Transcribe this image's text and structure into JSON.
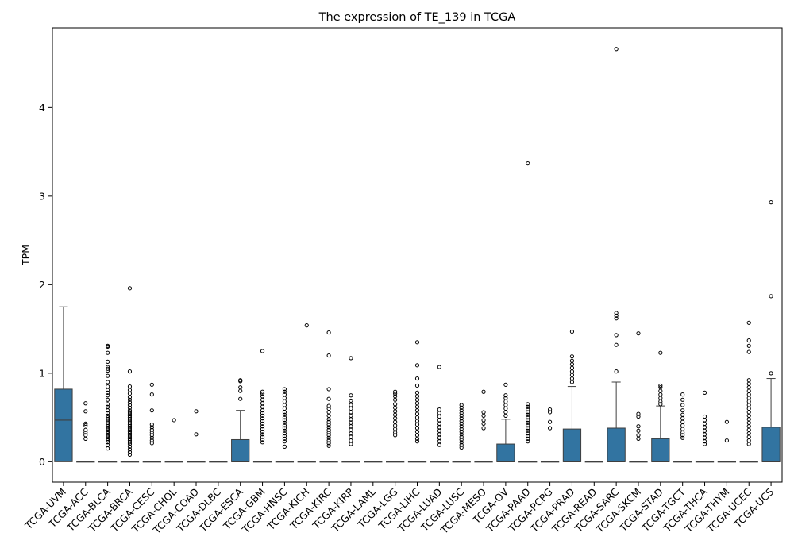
{
  "chart_data": {
    "type": "box",
    "title": "The expression of TE_139 in TCGA",
    "xlabel": "",
    "ylabel": "TPM",
    "ylim": [
      -0.23,
      4.9
    ],
    "yticks": [
      0,
      1,
      2,
      3,
      4
    ],
    "grid": false,
    "box_color": "#3274a1",
    "categories": [
      "TCGA-UVM",
      "TCGA-ACC",
      "TCGA-BLCA",
      "TCGA-BRCA",
      "TCGA-CESC",
      "TCGA-CHOL",
      "TCGA-COAD",
      "TCGA-DLBC",
      "TCGA-ESCA",
      "TCGA-GBM",
      "TCGA-HNSC",
      "TCGA-KICH",
      "TCGA-KIRC",
      "TCGA-KIRP",
      "TCGA-LAML",
      "TCGA-LGG",
      "TCGA-LIHC",
      "TCGA-LUAD",
      "TCGA-LUSC",
      "TCGA-MESO",
      "TCGA-OV",
      "TCGA-PAAD",
      "TCGA-PCPG",
      "TCGA-PRAD",
      "TCGA-READ",
      "TCGA-SARC",
      "TCGA-SKCM",
      "TCGA-STAD",
      "TCGA-TGCT",
      "TCGA-THCA",
      "TCGA-THYM",
      "TCGA-UCEC",
      "TCGA-UCS"
    ],
    "boxes": [
      {
        "q1": 0,
        "median": 0.47,
        "q3": 0.82,
        "whisker_low": 0,
        "whisker_high": 1.75,
        "outliers": []
      },
      {
        "q1": 0,
        "median": 0,
        "q3": 0,
        "whisker_low": 0,
        "whisker_high": 0,
        "outliers": [
          0.66,
          0.57,
          0.43,
          0.41,
          0.36,
          0.33,
          0.3,
          0.26
        ]
      },
      {
        "q1": 0,
        "median": 0,
        "q3": 0,
        "whisker_low": 0,
        "whisker_high": 0,
        "outliers": [
          1.31,
          1.3,
          1.23,
          1.13,
          1.07,
          1.05,
          1.03,
          0.97,
          0.9,
          0.85,
          0.81,
          0.78,
          0.75,
          0.7,
          0.65,
          0.62,
          0.58,
          0.55,
          0.52,
          0.5,
          0.48,
          0.46,
          0.44,
          0.42,
          0.4,
          0.38,
          0.36,
          0.34,
          0.32,
          0.3,
          0.28,
          0.26,
          0.24,
          0.22,
          0.19,
          0.15
        ]
      },
      {
        "q1": 0,
        "median": 0,
        "q3": 0,
        "whisker_low": 0,
        "whisker_high": 0,
        "outliers": [
          1.96,
          1.02,
          0.85,
          0.81,
          0.77,
          0.73,
          0.7,
          0.67,
          0.64,
          0.61,
          0.58,
          0.56,
          0.54,
          0.52,
          0.5,
          0.48,
          0.46,
          0.44,
          0.42,
          0.4,
          0.38,
          0.36,
          0.34,
          0.32,
          0.3,
          0.28,
          0.26,
          0.24,
          0.22,
          0.2,
          0.17,
          0.14,
          0.11,
          0.08
        ]
      },
      {
        "q1": 0,
        "median": 0,
        "q3": 0,
        "whisker_low": 0,
        "whisker_high": 0,
        "outliers": [
          0.87,
          0.76,
          0.58,
          0.42,
          0.39,
          0.36,
          0.33,
          0.3,
          0.27,
          0.24,
          0.21
        ]
      },
      {
        "q1": 0,
        "median": 0,
        "q3": 0,
        "whisker_low": 0,
        "whisker_high": 0,
        "outliers": [
          0.47
        ]
      },
      {
        "q1": 0,
        "median": 0,
        "q3": 0,
        "whisker_low": 0,
        "whisker_high": 0,
        "outliers": [
          0.57,
          0.31
        ]
      },
      {
        "q1": 0,
        "median": 0,
        "q3": 0,
        "whisker_low": 0,
        "whisker_high": 0,
        "outliers": []
      },
      {
        "q1": 0,
        "median": 0,
        "q3": 0.25,
        "whisker_low": 0,
        "whisker_high": 0.58,
        "outliers": [
          0.92,
          0.91,
          0.84,
          0.8,
          0.71
        ]
      },
      {
        "q1": 0,
        "median": 0,
        "q3": 0,
        "whisker_low": 0,
        "whisker_high": 0,
        "outliers": [
          1.25,
          0.79,
          0.77,
          0.74,
          0.7,
          0.66,
          0.62,
          0.58,
          0.55,
          0.52,
          0.49,
          0.46,
          0.43,
          0.4,
          0.37,
          0.34,
          0.31,
          0.28,
          0.25,
          0.22
        ]
      },
      {
        "q1": 0,
        "median": 0,
        "q3": 0,
        "whisker_low": 0,
        "whisker_high": 0,
        "outliers": [
          0.82,
          0.79,
          0.76,
          0.72,
          0.68,
          0.64,
          0.6,
          0.56,
          0.53,
          0.5,
          0.47,
          0.44,
          0.41,
          0.38,
          0.35,
          0.32,
          0.29,
          0.26,
          0.23,
          0.17
        ]
      },
      {
        "q1": 0,
        "median": 0,
        "q3": 0,
        "whisker_low": 0,
        "whisker_high": 0,
        "outliers": [
          1.54
        ]
      },
      {
        "q1": 0,
        "median": 0,
        "q3": 0,
        "whisker_low": 0,
        "whisker_high": 0,
        "outliers": [
          1.46,
          1.2,
          0.82,
          0.71,
          0.63,
          0.6,
          0.56,
          0.52,
          0.48,
          0.45,
          0.42,
          0.39,
          0.36,
          0.33,
          0.3,
          0.27,
          0.24,
          0.21,
          0.18
        ]
      },
      {
        "q1": 0,
        "median": 0,
        "q3": 0,
        "whisker_low": 0,
        "whisker_high": 0,
        "outliers": [
          1.17,
          0.75,
          0.69,
          0.64,
          0.6,
          0.56,
          0.52,
          0.48,
          0.44,
          0.4,
          0.36,
          0.32,
          0.28,
          0.24,
          0.2
        ]
      },
      {
        "q1": 0,
        "median": 0,
        "q3": 0,
        "whisker_low": 0,
        "whisker_high": 0,
        "outliers": []
      },
      {
        "q1": 0,
        "median": 0,
        "q3": 0,
        "whisker_low": 0,
        "whisker_high": 0,
        "outliers": [
          0.79,
          0.77,
          0.74,
          0.7,
          0.65,
          0.61,
          0.57,
          0.53,
          0.49,
          0.45,
          0.41,
          0.37,
          0.33,
          0.3
        ]
      },
      {
        "q1": 0,
        "median": 0,
        "q3": 0,
        "whisker_low": 0,
        "whisker_high": 0,
        "outliers": [
          1.35,
          1.09,
          0.94,
          0.86,
          0.78,
          0.74,
          0.7,
          0.66,
          0.62,
          0.58,
          0.54,
          0.5,
          0.46,
          0.42,
          0.38,
          0.34,
          0.3,
          0.26,
          0.23
        ]
      },
      {
        "q1": 0,
        "median": 0,
        "q3": 0,
        "whisker_low": 0,
        "whisker_high": 0,
        "outliers": [
          1.07,
          0.59,
          0.55,
          0.51,
          0.47,
          0.43,
          0.39,
          0.35,
          0.31,
          0.27,
          0.23,
          0.19
        ]
      },
      {
        "q1": 0,
        "median": 0,
        "q3": 0,
        "whisker_low": 0,
        "whisker_high": 0,
        "outliers": [
          0.64,
          0.61,
          0.58,
          0.55,
          0.52,
          0.49,
          0.46,
          0.43,
          0.4,
          0.37,
          0.34,
          0.31,
          0.28,
          0.25,
          0.22,
          0.19,
          0.16
        ]
      },
      {
        "q1": 0,
        "median": 0,
        "q3": 0,
        "whisker_low": 0,
        "whisker_high": 0,
        "outliers": [
          0.79,
          0.56,
          0.52,
          0.47,
          0.43,
          0.38
        ]
      },
      {
        "q1": 0,
        "median": 0,
        "q3": 0.2,
        "whisker_low": 0,
        "whisker_high": 0.48,
        "outliers": [
          0.87,
          0.75,
          0.72,
          0.68,
          0.64,
          0.6,
          0.56,
          0.52
        ]
      },
      {
        "q1": 0,
        "median": 0,
        "q3": 0,
        "whisker_low": 0,
        "whisker_high": 0,
        "outliers": [
          3.37,
          0.65,
          0.62,
          0.59,
          0.56,
          0.53,
          0.5,
          0.47,
          0.44,
          0.41,
          0.38,
          0.35,
          0.32,
          0.29,
          0.26,
          0.23
        ]
      },
      {
        "q1": 0,
        "median": 0,
        "q3": 0,
        "whisker_low": 0,
        "whisker_high": 0,
        "outliers": [
          0.59,
          0.56,
          0.45,
          0.38
        ]
      },
      {
        "q1": 0,
        "median": 0,
        "q3": 0.37,
        "whisker_low": 0,
        "whisker_high": 0.85,
        "outliers": [
          1.47,
          1.19,
          1.14,
          1.1,
          1.06,
          1.02,
          0.98,
          0.94,
          0.9
        ]
      },
      {
        "q1": 0,
        "median": 0,
        "q3": 0,
        "whisker_low": 0,
        "whisker_high": 0,
        "outliers": []
      },
      {
        "q1": 0,
        "median": 0,
        "q3": 0.38,
        "whisker_low": 0,
        "whisker_high": 0.9,
        "outliers": [
          4.66,
          1.68,
          1.65,
          1.62,
          1.43,
          1.32,
          1.02
        ]
      },
      {
        "q1": 0,
        "median": 0,
        "q3": 0,
        "whisker_low": 0,
        "whisker_high": 0,
        "outliers": [
          1.45,
          0.54,
          0.51,
          0.4,
          0.35,
          0.3,
          0.26
        ]
      },
      {
        "q1": 0,
        "median": 0,
        "q3": 0.26,
        "whisker_low": 0,
        "whisker_high": 0.63,
        "outliers": [
          1.23,
          0.86,
          0.84,
          0.8,
          0.76,
          0.72,
          0.68,
          0.65
        ]
      },
      {
        "q1": 0,
        "median": 0,
        "q3": 0,
        "whisker_low": 0,
        "whisker_high": 0,
        "outliers": [
          0.76,
          0.7,
          0.64,
          0.58,
          0.53,
          0.49,
          0.45,
          0.41,
          0.37,
          0.33,
          0.3,
          0.27
        ]
      },
      {
        "q1": 0,
        "median": 0,
        "q3": 0,
        "whisker_low": 0,
        "whisker_high": 0,
        "outliers": [
          0.78,
          0.51,
          0.47,
          0.43,
          0.39,
          0.35,
          0.31,
          0.27,
          0.23,
          0.2
        ]
      },
      {
        "q1": 0,
        "median": 0,
        "q3": 0,
        "whisker_low": 0,
        "whisker_high": 0,
        "outliers": [
          0.45,
          0.24
        ]
      },
      {
        "q1": 0,
        "median": 0,
        "q3": 0,
        "whisker_low": 0,
        "whisker_high": 0,
        "outliers": [
          1.57,
          1.37,
          1.31,
          1.24,
          0.92,
          0.88,
          0.84,
          0.8,
          0.76,
          0.72,
          0.68,
          0.64,
          0.6,
          0.56,
          0.52,
          0.48,
          0.44,
          0.4,
          0.36,
          0.32,
          0.28,
          0.24,
          0.2
        ]
      },
      {
        "q1": 0,
        "median": 0,
        "q3": 0.39,
        "whisker_low": 0,
        "whisker_high": 0.94,
        "outliers": [
          2.93,
          1.87,
          1.0
        ]
      }
    ]
  }
}
